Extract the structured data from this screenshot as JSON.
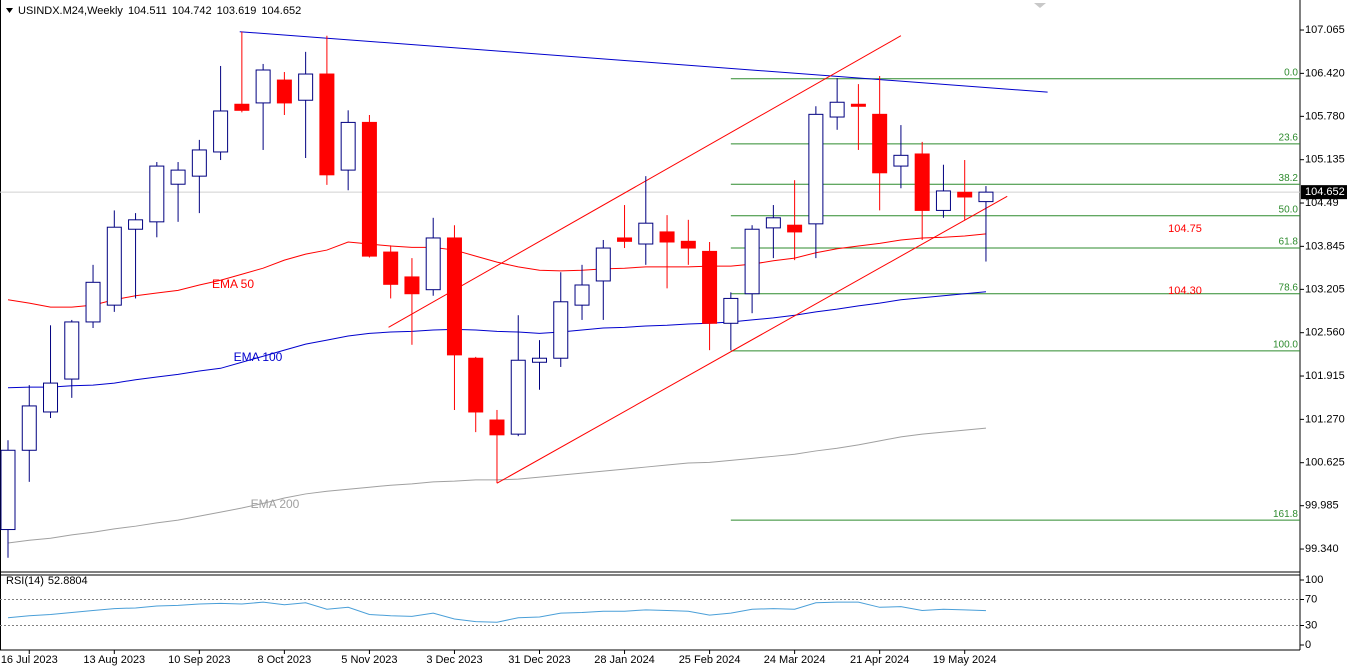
{
  "chart_data": [
    {
      "type": "candlestick",
      "title": "USINDX.M24,Weekly",
      "categories": [
        null,
        "16 Jul 2023",
        null,
        null,
        null,
        "13 Aug 2023",
        null,
        null,
        null,
        "10 Sep 2023",
        null,
        null,
        null,
        "8 Oct 2023",
        null,
        null,
        null,
        "5 Nov 2023",
        null,
        null,
        null,
        "3 Dec 2023",
        null,
        null,
        null,
        "31 Dec 2023",
        null,
        null,
        null,
        "28 Jan 2024",
        null,
        null,
        null,
        "25 Feb 2024",
        null,
        null,
        null,
        "24 Mar 2024",
        null,
        null,
        null,
        "21 Apr 2024",
        null,
        null,
        null,
        "19 May 2024",
        null
      ],
      "open": [
        99.63,
        100.81,
        101.38,
        101.87,
        102.72,
        102.97,
        104.1,
        104.21,
        104.77,
        104.89,
        105.25,
        105.96,
        105.98,
        106.32,
        106.02,
        106.41,
        104.98,
        105.69,
        103.76,
        103.39,
        103.2,
        103.97,
        102.18,
        101.26,
        101.05,
        102.12,
        102.18,
        102.97,
        103.33,
        103.97,
        103.88,
        104.06,
        103.92,
        103.77,
        102.7,
        103.14,
        104.12,
        104.16,
        104.18,
        105.77,
        105.96,
        105.81,
        105.04,
        105.22,
        104.38,
        104.65,
        104.511
      ],
      "high": [
        100.96,
        101.78,
        102.67,
        102.75,
        103.57,
        104.38,
        104.34,
        105.1,
        105.1,
        105.43,
        106.53,
        107.04,
        106.56,
        106.44,
        106.74,
        106.98,
        105.87,
        105.8,
        103.86,
        103.67,
        104.27,
        104.16,
        102.2,
        101.41,
        102.82,
        102.45,
        103.46,
        103.57,
        103.94,
        104.46,
        104.89,
        104.31,
        104.24,
        103.91,
        103.16,
        104.16,
        104.46,
        104.83,
        105.93,
        106.35,
        106.26,
        106.38,
        105.65,
        105.4,
        105.06,
        105.13,
        104.742
      ],
      "low": [
        99.21,
        100.34,
        101.29,
        101.59,
        102.63,
        102.87,
        103.07,
        103.98,
        104.21,
        104.34,
        105.13,
        105.84,
        105.28,
        105.8,
        105.16,
        104.76,
        104.68,
        103.68,
        103.07,
        102.38,
        103.11,
        101.41,
        101.08,
        100.32,
        101.02,
        101.71,
        102.05,
        102.75,
        102.75,
        103.82,
        103.57,
        103.22,
        103.57,
        102.3,
        102.3,
        102.85,
        103.67,
        103.64,
        103.67,
        105.58,
        105.28,
        104.38,
        104.71,
        103.94,
        104.27,
        104.24,
        103.619
      ],
      "close": [
        100.81,
        101.47,
        101.81,
        102.72,
        103.31,
        104.13,
        104.24,
        105.04,
        104.98,
        105.28,
        105.86,
        105.87,
        106.47,
        105.98,
        106.41,
        104.91,
        105.69,
        103.7,
        103.28,
        103.14,
        103.97,
        102.23,
        101.38,
        101.04,
        102.15,
        102.18,
        103.02,
        103.27,
        103.82,
        103.92,
        104.19,
        103.91,
        103.82,
        102.7,
        103.07,
        104.1,
        104.27,
        104.06,
        105.81,
        105.99,
        105.93,
        104.94,
        105.2,
        104.38,
        104.67,
        104.58,
        104.652
      ],
      "up_color": "#ffffff",
      "down_color": "#ff0000",
      "edge_color": "#000080",
      "ylim": [
        99.013,
        107.497
      ],
      "yticks": [
        107.065,
        {
          "value": 106.42,
          "label": "106.420"
        },
        {
          "value": 105.78,
          "label": "105.780"
        },
        105.135,
        104.49,
        103.845,
        103.205,
        {
          "value": 102.56,
          "label": "102.560"
        },
        101.915,
        {
          "value": 101.27,
          "label": "101.270"
        },
        100.625,
        99.985,
        {
          "value": 99.34,
          "label": "99.340"
        }
      ],
      "overlays": [
        {
          "name": "EMA 50",
          "color": "#ff0000",
          "values": [
            103.05,
            103.0,
            102.94,
            102.94,
            102.97,
            103.05,
            103.11,
            103.15,
            103.19,
            103.27,
            103.34,
            103.43,
            103.52,
            103.64,
            103.73,
            103.79,
            103.91,
            103.88,
            103.85,
            103.83,
            103.83,
            103.79,
            103.7,
            103.61,
            103.54,
            103.49,
            103.48,
            103.49,
            103.51,
            103.52,
            103.54,
            103.54,
            103.54,
            103.55,
            103.55,
            103.58,
            103.63,
            103.67,
            103.75,
            103.81,
            103.85,
            103.89,
            103.94,
            103.97,
            103.98,
            104.0,
            104.03
          ]
        },
        {
          "name": "EMA 100",
          "color": "#0000cd",
          "values": [
            101.74,
            101.75,
            101.75,
            101.77,
            101.78,
            101.81,
            101.86,
            101.9,
            101.94,
            101.99,
            102.03,
            102.12,
            102.21,
            102.3,
            102.39,
            102.45,
            102.51,
            102.55,
            102.57,
            102.58,
            102.6,
            102.61,
            102.6,
            102.58,
            102.57,
            102.55,
            102.57,
            102.6,
            102.63,
            102.64,
            102.66,
            102.67,
            102.69,
            102.7,
            102.72,
            102.75,
            102.78,
            102.82,
            102.87,
            102.91,
            102.96,
            103.0,
            103.05,
            103.08,
            103.11,
            103.14,
            103.17
          ]
        },
        {
          "name": "EMA 200",
          "color": "#a0a0a0",
          "values": [
            99.43,
            99.47,
            99.5,
            99.55,
            99.59,
            99.64,
            99.68,
            99.73,
            99.77,
            99.83,
            99.89,
            99.95,
            100.02,
            100.1,
            100.16,
            100.2,
            100.23,
            100.26,
            100.29,
            100.31,
            100.34,
            100.35,
            100.37,
            100.37,
            100.38,
            100.41,
            100.44,
            100.47,
            100.5,
            100.53,
            100.56,
            100.59,
            100.62,
            100.63,
            100.66,
            100.69,
            100.72,
            100.75,
            100.8,
            100.84,
            100.89,
            100.95,
            101.01,
            101.05,
            101.08,
            101.11,
            101.14
          ]
        }
      ],
      "trendlines": [
        {
          "color": "#0000cd",
          "x": [
            10.9,
            48.9
          ],
          "y": [
            107.04,
            106.14
          ]
        },
        {
          "color": "#ff0000",
          "x": [
            17.9,
            42
          ],
          "y": [
            102.64,
            106.98
          ]
        },
        {
          "color": "#ff0000",
          "x": [
            23,
            47
          ],
          "y": [
            100.32,
            104.59
          ]
        }
      ],
      "fibonacci": {
        "color": "#2e8b2e",
        "start": 34,
        "levels": [
          {
            "label": "0.0",
            "value": 106.34
          },
          {
            "label": "23.6",
            "value": 105.37
          },
          {
            "label": "38.2",
            "value": 104.77
          },
          {
            "label": "50.0",
            "value": 104.3
          },
          {
            "label": "61.8",
            "value": 103.82
          },
          {
            "label": "78.6",
            "value": 103.14
          },
          {
            "label": "100.0",
            "value": 102.29
          },
          {
            "label": "161.8",
            "value": 99.77
          }
        ]
      },
      "annotations": [
        {
          "text": "104.75",
          "color": "#ff0000"
        },
        {
          "text": "104.30",
          "color": "#ff0000"
        }
      ]
    },
    {
      "type": "line",
      "title": "RSI(14)",
      "color": "#4a9fd8",
      "values": [
        42,
        45,
        47,
        50,
        53,
        56,
        57,
        60,
        61,
        63,
        64,
        63,
        66,
        62,
        65,
        55,
        58,
        47,
        45,
        44,
        49,
        40,
        36,
        35,
        42,
        43,
        49,
        50,
        52,
        52,
        54,
        53,
        52,
        46,
        49,
        55,
        56,
        55,
        65,
        66,
        66,
        58,
        59,
        53,
        55,
        54,
        52.8804
      ],
      "ylim": [
        0,
        100
      ],
      "yticks": [
        100,
        70,
        30,
        0
      ]
    }
  ]
}
